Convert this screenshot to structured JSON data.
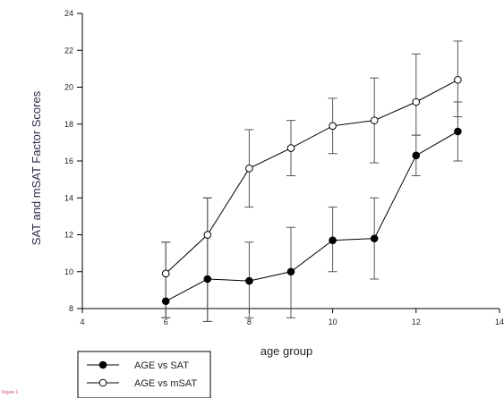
{
  "chart_data": {
    "type": "line",
    "xlabel": "age group",
    "ylabel": "SAT and mSAT Factor Scores",
    "xlim": [
      4,
      14
    ],
    "ylim": [
      8,
      24
    ],
    "x_ticks": [
      "4",
      "6",
      "8",
      "10",
      "12",
      "14"
    ],
    "y_ticks": [
      "8",
      "10",
      "12",
      "14",
      "16",
      "18",
      "20",
      "22",
      "24"
    ],
    "grid": false,
    "legend_position": "bottom-left",
    "series": [
      {
        "name": "AGE vs SAT",
        "marker": "filled-circle",
        "color": "#000000",
        "x": [
          6,
          7,
          8,
          9,
          10,
          11,
          12,
          13
        ],
        "y": [
          8.4,
          9.6,
          9.5,
          10.0,
          11.7,
          11.8,
          16.3,
          17.6
        ],
        "err_low": [
          7.5,
          7.3,
          7.5,
          7.5,
          10.0,
          9.6,
          15.2,
          16.0
        ],
        "err_high": [
          11.6,
          14.0,
          11.6,
          12.4,
          13.5,
          14.0,
          17.4,
          19.2
        ]
      },
      {
        "name": "AGE vs mSAT",
        "marker": "open-circle",
        "color": "#000000",
        "x": [
          6,
          7,
          8,
          9,
          10,
          11,
          12,
          13
        ],
        "y": [
          9.9,
          12.0,
          15.6,
          16.7,
          17.9,
          18.2,
          19.2,
          20.4
        ],
        "err_low": [
          7.5,
          7.3,
          13.5,
          15.2,
          16.4,
          15.9,
          17.4,
          18.4
        ],
        "err_high": [
          11.6,
          14.0,
          17.7,
          18.2,
          19.4,
          20.5,
          21.8,
          22.5
        ]
      }
    ]
  },
  "caption": "Figure 1"
}
